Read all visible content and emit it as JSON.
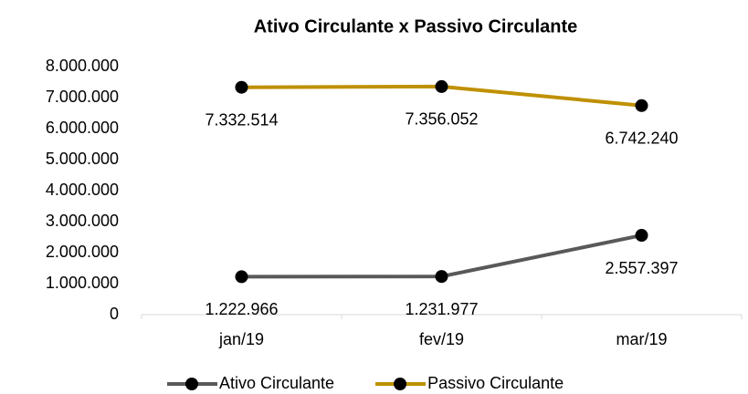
{
  "chart_data": {
    "type": "line",
    "title": "Ativo Circulante x Passivo Circulante",
    "categories": [
      "jan/19",
      "fev/19",
      "mar/19"
    ],
    "series": [
      {
        "name": "Ativo Circulante",
        "color": "#595959",
        "values": [
          1222966,
          1231977,
          2557397
        ],
        "value_labels": [
          "1.222.966",
          "1.231.977",
          "2.557.397"
        ]
      },
      {
        "name": "Passivo Circulante",
        "color": "#bf9000",
        "values": [
          7332514,
          7356052,
          6742240
        ],
        "value_labels": [
          "7.332.514",
          "7.356.052",
          "6.742.240"
        ]
      }
    ],
    "ylim": [
      0,
      8000000
    ],
    "yticks": [
      0,
      {
        "value": 1000000,
        "label": "1.000.000"
      },
      {
        "value": 2000000,
        "label": "2.000.000"
      },
      {
        "value": 3000000,
        "label": "3.000.000"
      },
      {
        "value": 4000000,
        "label": "4.000.000"
      },
      {
        "value": 5000000,
        "label": "5.000.000"
      },
      {
        "value": 6000000,
        "label": "6.000.000"
      },
      {
        "value": 7000000,
        "label": "7.000.000"
      },
      {
        "value": 8000000,
        "label": "8.000.000"
      }
    ],
    "grid": false,
    "legend": "bottom"
  }
}
